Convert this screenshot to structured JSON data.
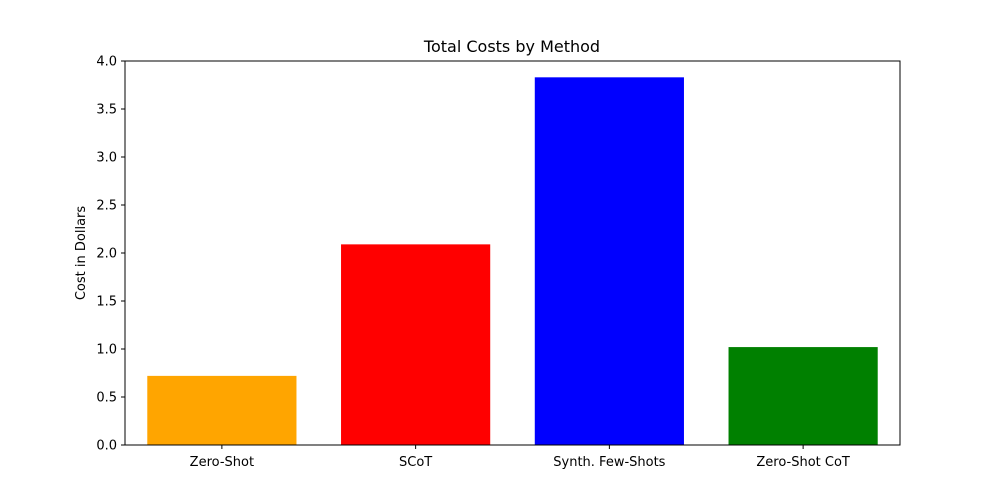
{
  "chart_data": {
    "type": "bar",
    "title": "Total Costs by Method",
    "xlabel": "",
    "ylabel": "Cost in Dollars",
    "categories": [
      "Zero-Shot",
      "SCoT",
      "Synth. Few-Shots",
      "Zero-Shot CoT"
    ],
    "values": [
      0.72,
      2.09,
      3.83,
      1.02
    ],
    "colors": [
      "#ffa500",
      "#ff0000",
      "#0000ff",
      "#008000"
    ],
    "ylim": [
      0,
      4.0
    ],
    "yticks": [
      "0.0",
      "0.5",
      "1.0",
      "1.5",
      "2.0",
      "2.5",
      "3.0",
      "3.5",
      "4.0"
    ],
    "grid": false,
    "legend": "none"
  }
}
